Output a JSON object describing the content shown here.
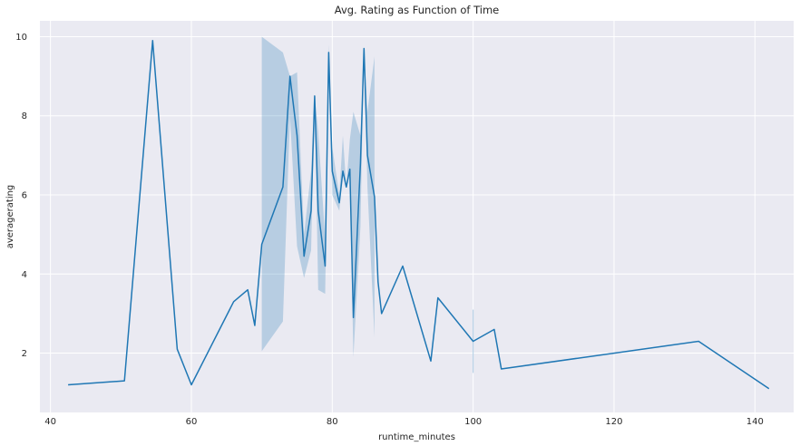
{
  "chart_data": {
    "type": "line",
    "title": "Avg. Rating as Function of Time",
    "xlabel": "runtime_minutes",
    "ylabel": "averagerating",
    "xlim": [
      38.5,
      145.5
    ],
    "ylim": [
      0.5,
      10.4
    ],
    "x_ticks": [
      40,
      60,
      80,
      100,
      120,
      140
    ],
    "y_ticks": [
      2,
      4,
      6,
      8,
      10
    ],
    "grid": true,
    "legend": "none",
    "colors": {
      "line": "#1f77b4",
      "band": "#1f77b4",
      "background": "#eaeaf2",
      "grid": "#ffffff"
    },
    "series": [
      {
        "x": [
          42.5,
          50.5,
          54.5,
          58,
          60,
          66,
          68,
          69,
          70,
          73,
          74,
          75,
          76,
          77,
          77.5,
          78,
          79,
          79.5,
          80,
          81,
          81.5,
          82,
          82.5,
          83,
          84,
          84.5,
          85,
          86,
          86.5,
          87,
          90,
          94,
          95,
          100,
          103,
          104,
          132,
          142
        ],
        "y": [
          1.2,
          1.3,
          9.9,
          2.1,
          1.2,
          3.3,
          3.6,
          2.7,
          4.75,
          6.2,
          9.0,
          7.5,
          4.45,
          5.6,
          8.5,
          5.6,
          4.2,
          9.6,
          6.6,
          5.8,
          6.6,
          6.2,
          6.65,
          2.9,
          6.8,
          9.7,
          7.0,
          5.95,
          3.8,
          3.0,
          4.2,
          1.8,
          3.4,
          2.3,
          2.6,
          1.6,
          2.3,
          1.1
        ]
      }
    ],
    "confidence_band": {
      "x": [
        70,
        73,
        74,
        75,
        76,
        77,
        77.5,
        78,
        79,
        79.5,
        80,
        81,
        81.5,
        82,
        82.5,
        83,
        84,
        84.5,
        85,
        86
      ],
      "lower": [
        2.05,
        2.8,
        8.0,
        4.7,
        3.9,
        4.6,
        8.5,
        3.6,
        3.5,
        9.2,
        6.0,
        5.6,
        6.6,
        6.2,
        6.65,
        1.9,
        5.2,
        9.7,
        6.2,
        2.4
      ],
      "upper": [
        10.0,
        9.6,
        9.0,
        9.1,
        5.0,
        6.6,
        8.5,
        7.6,
        4.9,
        9.8,
        7.2,
        6.0,
        7.5,
        6.2,
        7.4,
        8.1,
        7.5,
        9.7,
        8.1,
        9.5
      ]
    },
    "error_bars": [
      {
        "x": 100,
        "low": 1.5,
        "high": 3.1
      }
    ]
  }
}
